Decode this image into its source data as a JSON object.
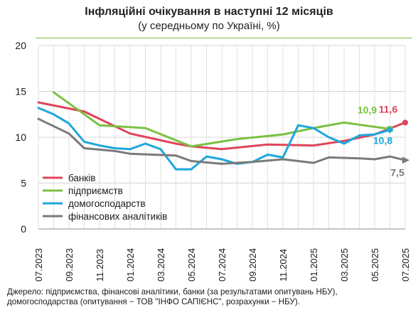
{
  "chart_data": {
    "type": "line",
    "title": "Інфляційні очікування в наступні 12 місяців",
    "subtitle": "(у середньому по Україні, %)",
    "ylim": [
      0,
      20
    ],
    "yticks": [
      0,
      5,
      10,
      15,
      20
    ],
    "x_labels": [
      "07.2023",
      "09.2023",
      "11.2023",
      "01.2024",
      "03.2024",
      "05.2024",
      "07.2024",
      "09.2024",
      "11.2024",
      "01.2025",
      "03.2025",
      "05.2025",
      "07.2025"
    ],
    "grid": true,
    "legend_position": "bottom-left",
    "series": [
      {
        "name": "банків",
        "color": "#e0445a",
        "points": [
          [
            "07.2023",
            13.8
          ],
          [
            "10.2023",
            12.8
          ],
          [
            "01.2024",
            10.4
          ],
          [
            "04.2024",
            9.3
          ],
          [
            "05.2024",
            9.0
          ],
          [
            "07.2024",
            8.7
          ],
          [
            "10.2024",
            9.2
          ],
          [
            "01.2025",
            9.1
          ],
          [
            "03.2025",
            9.6
          ],
          [
            "05.2025",
            10.3
          ],
          [
            "07.2025",
            11.6
          ]
        ]
      },
      {
        "name": "підприємств",
        "color": "#7ac143",
        "points": [
          [
            "08.2023",
            14.9
          ],
          [
            "11.2023",
            11.3
          ],
          [
            "02.2024",
            11.0
          ],
          [
            "05.2024",
            9.0
          ],
          [
            "08.2024",
            9.8
          ],
          [
            "11.2024",
            10.3
          ],
          [
            "01.2025",
            11.0
          ],
          [
            "03.2025",
            11.6
          ],
          [
            "06.2025",
            10.9
          ]
        ]
      },
      {
        "name": "домогосподарств",
        "color": "#1da7dc",
        "points": [
          [
            "07.2023",
            13.2
          ],
          [
            "08.2023",
            12.5
          ],
          [
            "09.2023",
            11.5
          ],
          [
            "10.2023",
            9.5
          ],
          [
            "11.2023",
            9.1
          ],
          [
            "12.2023",
            8.8
          ],
          [
            "01.2024",
            8.7
          ],
          [
            "02.2024",
            9.3
          ],
          [
            "03.2024",
            8.7
          ],
          [
            "04.2024",
            6.5
          ],
          [
            "05.2024",
            6.5
          ],
          [
            "06.2024",
            7.9
          ],
          [
            "07.2024",
            7.6
          ],
          [
            "08.2024",
            7.1
          ],
          [
            "09.2024",
            7.3
          ],
          [
            "10.2024",
            8.1
          ],
          [
            "11.2024",
            7.8
          ],
          [
            "12.2024",
            11.3
          ],
          [
            "01.2025",
            11.0
          ],
          [
            "02.2025",
            10.0
          ],
          [
            "03.2025",
            9.3
          ],
          [
            "04.2025",
            10.2
          ],
          [
            "05.2025",
            10.3
          ],
          [
            "06.2025",
            10.8
          ]
        ]
      },
      {
        "name": "фінансових аналітиків",
        "color": "#7a7a7a",
        "points": [
          [
            "07.2023",
            12.0
          ],
          [
            "09.2023",
            10.4
          ],
          [
            "10.2023",
            8.8
          ],
          [
            "12.2023",
            8.5
          ],
          [
            "01.2024",
            8.2
          ],
          [
            "04.2024",
            8.0
          ],
          [
            "05.2024",
            7.4
          ],
          [
            "07.2024",
            7.1
          ],
          [
            "09.2024",
            7.3
          ],
          [
            "11.2024",
            7.6
          ],
          [
            "12.2024",
            7.4
          ],
          [
            "01.2025",
            7.2
          ],
          [
            "02.2025",
            7.8
          ],
          [
            "04.2025",
            7.7
          ],
          [
            "05.2025",
            7.6
          ],
          [
            "06.2025",
            7.9
          ],
          [
            "07.2025",
            7.5
          ]
        ]
      }
    ],
    "annotations": [
      {
        "series": 0,
        "text": "11,6"
      },
      {
        "series": 1,
        "text": "10,9"
      },
      {
        "series": 2,
        "text": "10,8"
      },
      {
        "series": 3,
        "text": "7,5"
      }
    ]
  },
  "source": {
    "line1": "Джерело: підприємства, фінансові аналітики, банки (за результатами опитувань НБУ),",
    "line2": "домогосподарства (опитування − ТОВ \"ІНФО САПІЄНС\", розрахунки − НБУ)."
  }
}
